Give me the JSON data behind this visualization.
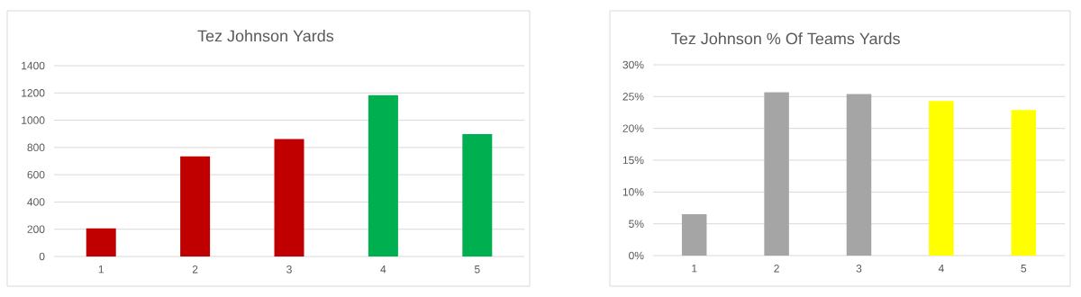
{
  "chart_data": [
    {
      "type": "bar",
      "title": "Tez Johnson Yards",
      "categories": [
        "1",
        "2",
        "3",
        "4",
        "5"
      ],
      "values": [
        206,
        734,
        861,
        1184,
        898
      ],
      "colors": [
        "#c00000",
        "#c00000",
        "#c00000",
        "#00b050",
        "#00b050"
      ],
      "ylim": [
        0,
        1400
      ],
      "yticks": [
        0,
        200,
        400,
        600,
        800,
        1000,
        1200,
        1400
      ],
      "grid": "y"
    },
    {
      "type": "bar",
      "title": "Tez Johnson % Of Teams Yards",
      "categories": [
        "1",
        "2",
        "3",
        "4",
        "5"
      ],
      "values": [
        6.5,
        25.7,
        25.4,
        24.3,
        22.9
      ],
      "colors": [
        "#a5a5a5",
        "#a5a5a5",
        "#a5a5a5",
        "#ffff00",
        "#ffff00"
      ],
      "ylim": [
        0,
        30
      ],
      "yticks": [
        {
          "value": 0,
          "label": "0%"
        },
        {
          "value": 5,
          "label": "5%"
        },
        {
          "value": 10,
          "label": "10%"
        },
        {
          "value": 15,
          "label": "15%"
        },
        {
          "value": 20,
          "label": "20%"
        },
        {
          "value": 25,
          "label": "25%"
        },
        {
          "value": 30,
          "label": "30%"
        }
      ],
      "grid": "y"
    }
  ]
}
